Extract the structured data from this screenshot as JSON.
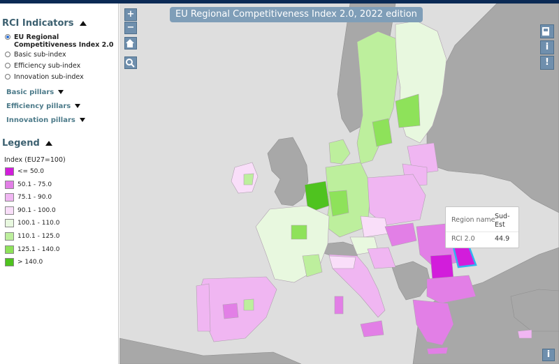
{
  "sidebar": {
    "indicators_title": "RCI Indicators",
    "indicator_options": [
      {
        "label": "EU Regional Competitiveness Index 2.0",
        "selected": true
      },
      {
        "label": "Basic sub-index",
        "selected": false
      },
      {
        "label": "Efficiency sub-index",
        "selected": false
      },
      {
        "label": "Innovation sub-index",
        "selected": false
      }
    ],
    "pillars": [
      "Basic pillars",
      "Efficiency pillars",
      "Innovation pillars"
    ],
    "legend_title": "Legend",
    "legend_subtitle": "Index (EU27=100)",
    "legend_items": [
      {
        "label": "<= 50.0",
        "color": "#d21ddb"
      },
      {
        "label": "50.1 - 75.0",
        "color": "#e27fe6"
      },
      {
        "label": "75.1 - 90.0",
        "color": "#f0b6f2"
      },
      {
        "label": "90.1 - 100.0",
        "color": "#f9def9"
      },
      {
        "label": "100.1 - 110.0",
        "color": "#e8f8df"
      },
      {
        "label": "110.1 - 125.0",
        "color": "#bdef9d"
      },
      {
        "label": "125.1 - 140.0",
        "color": "#8ee25a"
      },
      {
        "label": "> 140.0",
        "color": "#4fc31f"
      }
    ]
  },
  "map": {
    "title": "EU Regional Competitiveness Index 2.0, 2022 edition",
    "zoom_in_label": "+",
    "zoom_out_label": "−",
    "tooltip": {
      "name_label": "Region name",
      "name_value": "Sud-Est",
      "index_label": "RCI 2.0",
      "index_value": "44.9"
    },
    "icons": [
      "zoom-in-icon",
      "zoom-out-icon",
      "home-icon",
      "magnifier-icon",
      "bookmark-icon",
      "info-icon",
      "alert-icon",
      "info-small-icon"
    ]
  }
}
